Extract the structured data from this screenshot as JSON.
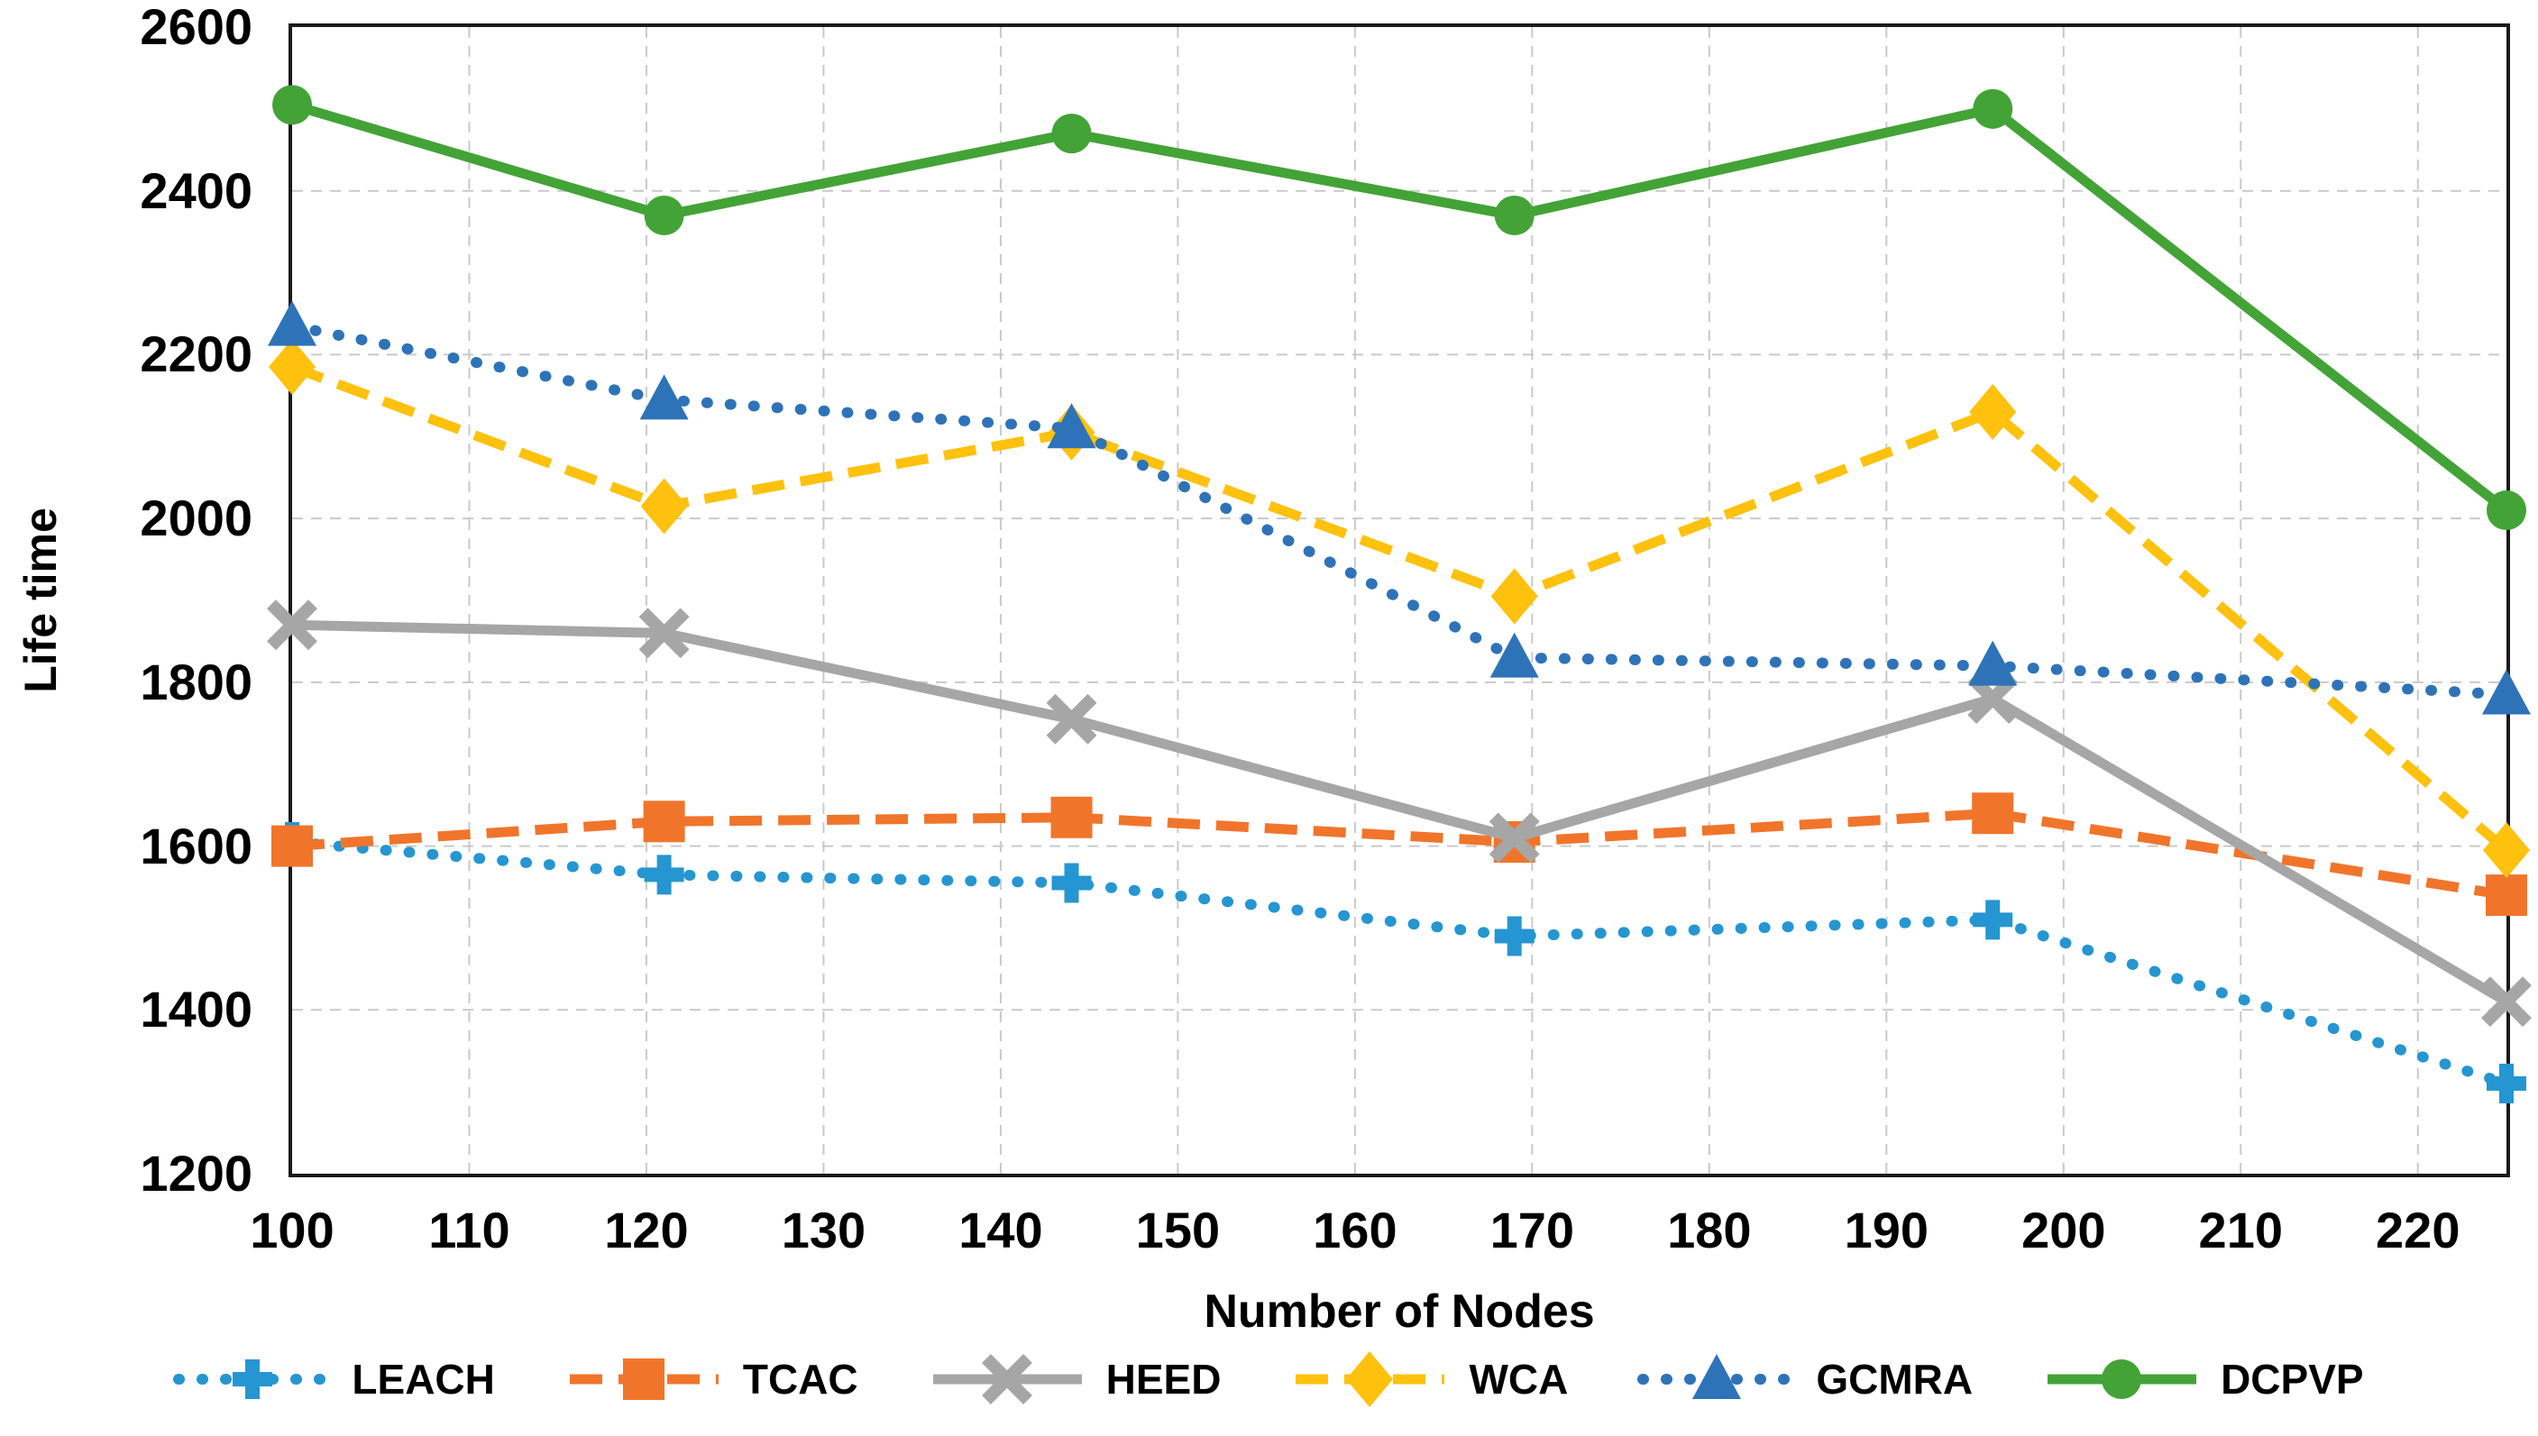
{
  "chart_data": {
    "type": "line",
    "title": "",
    "xlabel": "Number of Nodes",
    "ylabel": "Life time",
    "xlim": [
      100,
      225
    ],
    "ylim": [
      1200,
      2600
    ],
    "x_ticks": [
      100,
      110,
      120,
      130,
      140,
      150,
      160,
      170,
      180,
      190,
      200,
      210,
      220
    ],
    "y_ticks": [
      1200,
      1400,
      1600,
      1800,
      2000,
      2200,
      2400,
      2600
    ],
    "grid": true,
    "legend_position": "bottom",
    "x": [
      100,
      121,
      144,
      169,
      196,
      225
    ],
    "series": [
      {
        "name": "LEACH",
        "color": "#2596d1",
        "marker": "plus",
        "line": "dotted",
        "values": [
          1605,
          1565,
          1555,
          1490,
          1510,
          1310
        ]
      },
      {
        "name": "TCAC",
        "color": "#f0752b",
        "marker": "square",
        "line": "dashed",
        "values": [
          1600,
          1630,
          1635,
          1605,
          1640,
          1540
        ]
      },
      {
        "name": "HEED",
        "color": "#a6a6a6",
        "marker": "x",
        "line": "solid",
        "values": [
          1870,
          1860,
          1755,
          1610,
          1780,
          1410
        ]
      },
      {
        "name": "WCA",
        "color": "#fec10d",
        "marker": "diamond",
        "line": "dashed",
        "values": [
          2185,
          2015,
          2105,
          1905,
          2130,
          1595
        ]
      },
      {
        "name": "GCMRA",
        "color": "#2e73b8",
        "marker": "triangle",
        "line": "dotted",
        "values": [
          2235,
          2145,
          2110,
          1830,
          1820,
          1785
        ]
      },
      {
        "name": "DCPVP",
        "color": "#43a336",
        "marker": "circle",
        "line": "solid",
        "values": [
          2505,
          2370,
          2470,
          2370,
          2500,
          2010
        ]
      }
    ]
  }
}
